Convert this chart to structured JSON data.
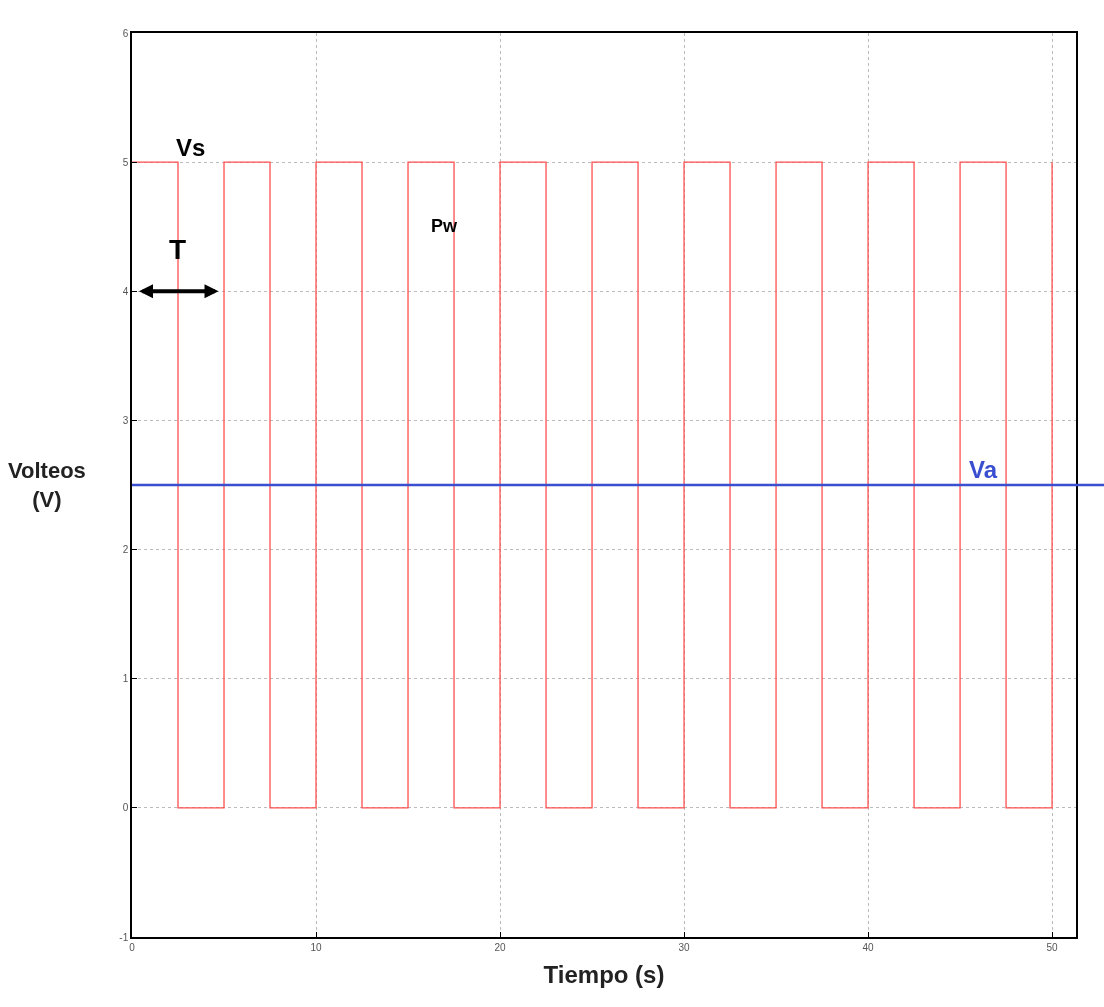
{
  "chart_data": {
    "type": "step",
    "xlabel": "Tiempo (s)",
    "ylabel": "Volteos (V)",
    "x": [
      0,
      2.5,
      5,
      7.5,
      10,
      12.5,
      15,
      17.5,
      20,
      22.5,
      25,
      27.5,
      30,
      32.5,
      35,
      37.5,
      40,
      42.5,
      45,
      47.5,
      50
    ],
    "series": [
      {
        "color": "#ff5050",
        "values": [
          5,
          0,
          5,
          0,
          5,
          0,
          5,
          0,
          5,
          0,
          5,
          0,
          5,
          0,
          5,
          0,
          5,
          0,
          5,
          0,
          5
        ]
      }
    ],
    "ref_lines": [
      {
        "axis": "y",
        "value": 2.5,
        "label": "Va",
        "color": "#3a4fd0"
      }
    ],
    "annotations": [
      "Vs",
      "Pw",
      "T"
    ],
    "xlim": [
      0,
      51.3
    ],
    "xticks": [
      0,
      10,
      20,
      30,
      40,
      50
    ],
    "ylim": [
      -1,
      6
    ],
    "yticks": [
      -1,
      0,
      1,
      2,
      3,
      4,
      5,
      6
    ],
    "grid": true,
    "marker": "none",
    "line_style": "solid"
  }
}
